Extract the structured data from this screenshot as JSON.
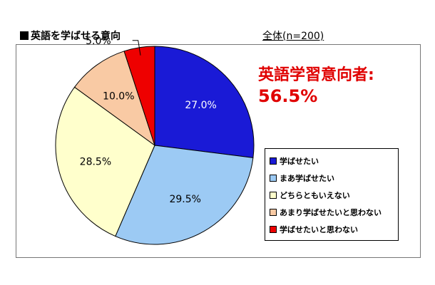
{
  "title": "■英語を学ばせる意向",
  "total_label": "全体(n=200)",
  "headline": {
    "line1": "英語学習意向者:",
    "line2": "56.5%"
  },
  "chart_data": {
    "type": "pie",
    "title": "英語を学ばせる意向",
    "categories": [
      "学ばせたい",
      "まあ学ばせたい",
      "どちらともいえない",
      "あまり学ばせたいと思わない",
      "学ばせたいと思わない"
    ],
    "values": [
      27.0,
      29.5,
      28.5,
      10.0,
      5.0
    ],
    "labels": [
      "27.0%",
      "29.5%",
      "28.5%",
      "10.0%",
      "5.0%"
    ],
    "colors": [
      "#1a1ad6",
      "#9ccaf4",
      "#ffffcc",
      "#f9caa4",
      "#ee0000"
    ],
    "label_colors": [
      "#ffffff",
      "#000000",
      "#000000",
      "#000000",
      "#000000"
    ],
    "start": "12 o'clock, clockwise",
    "legend_position": "right"
  }
}
